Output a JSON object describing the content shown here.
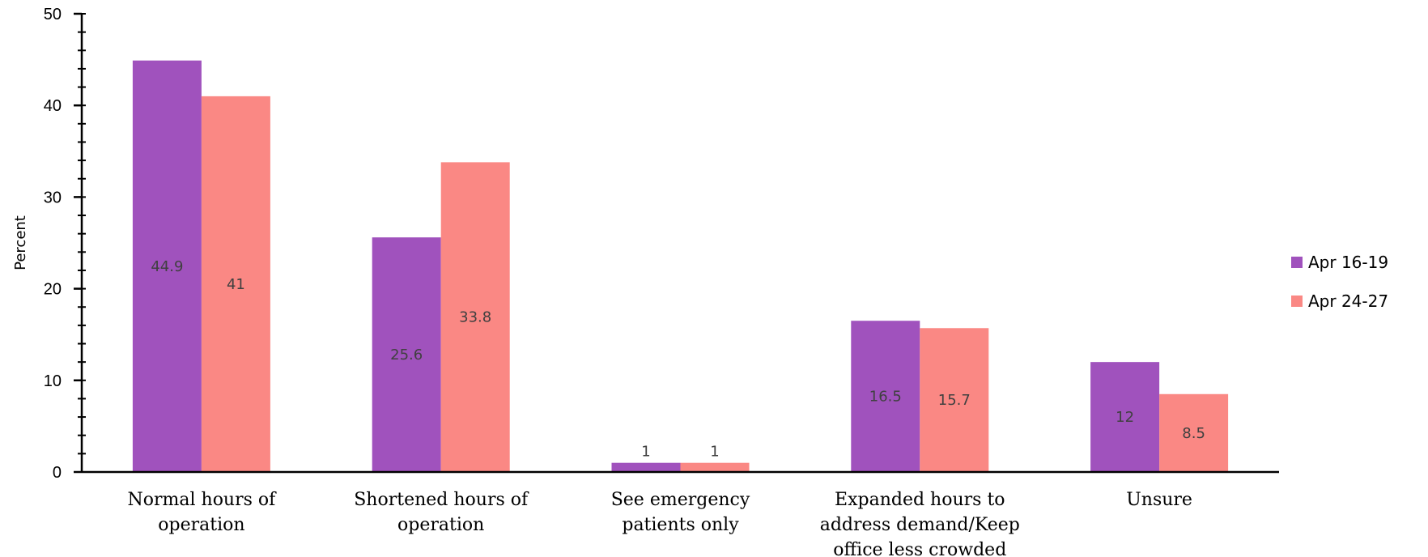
{
  "chart_data": {
    "type": "bar",
    "ylabel": "Percent",
    "ylim": [
      0,
      50
    ],
    "yticks": [
      0,
      10,
      20,
      30,
      40,
      50
    ],
    "y_minor_step": 2,
    "grid": false,
    "legend_position": "right",
    "categories": [
      [
        "Normal hours of",
        "operation"
      ],
      [
        "Shortened hours of",
        "operation"
      ],
      [
        "See emergency",
        "patients only"
      ],
      [
        "Expanded hours to",
        "address demand/Keep",
        "office less crowded"
      ],
      [
        "Unsure"
      ]
    ],
    "series": [
      {
        "name": "Apr 16-19",
        "color": "#a052bd",
        "values": [
          44.9,
          25.6,
          1,
          16.5,
          12
        ]
      },
      {
        "name": "Apr 24-27",
        "color": "#fa8884",
        "values": [
          41,
          33.8,
          1,
          15.7,
          8.5
        ]
      }
    ]
  }
}
